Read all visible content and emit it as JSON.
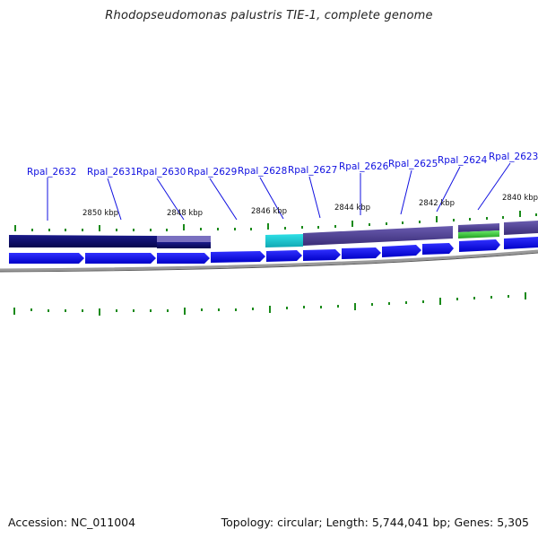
{
  "title": "Rhodopseudomonas palustris TIE-1, complete genome",
  "footer": {
    "accession": "Accession: NC_011004",
    "summary": "Topology: circular; Length: 5,744,041 bp; Genes: 5,305"
  },
  "gene_labels": [
    "Rpal_2632",
    "Rpal_2631",
    "Rpal_2630",
    "Rpal_2629",
    "Rpal_2628",
    "Rpal_2627",
    "Rpal_2626",
    "Rpal_2625",
    "Rpal_2624",
    "Rpal_2623"
  ],
  "kbp_labels": [
    "2850 kbp",
    "2848 kbp",
    "2846 kbp",
    "2844 kbp",
    "2842 kbp",
    "2840 kbp"
  ],
  "colors": {
    "gene_arrow": "#0a0af0",
    "feature_navy": "#0c0c6e",
    "feature_purple": "#4b3d8f",
    "feature_cyan": "#1ec8d0",
    "feature_green": "#3ac83a",
    "tick": "#1a8a1a",
    "label": "#1010e0",
    "backbone": "#808080"
  }
}
